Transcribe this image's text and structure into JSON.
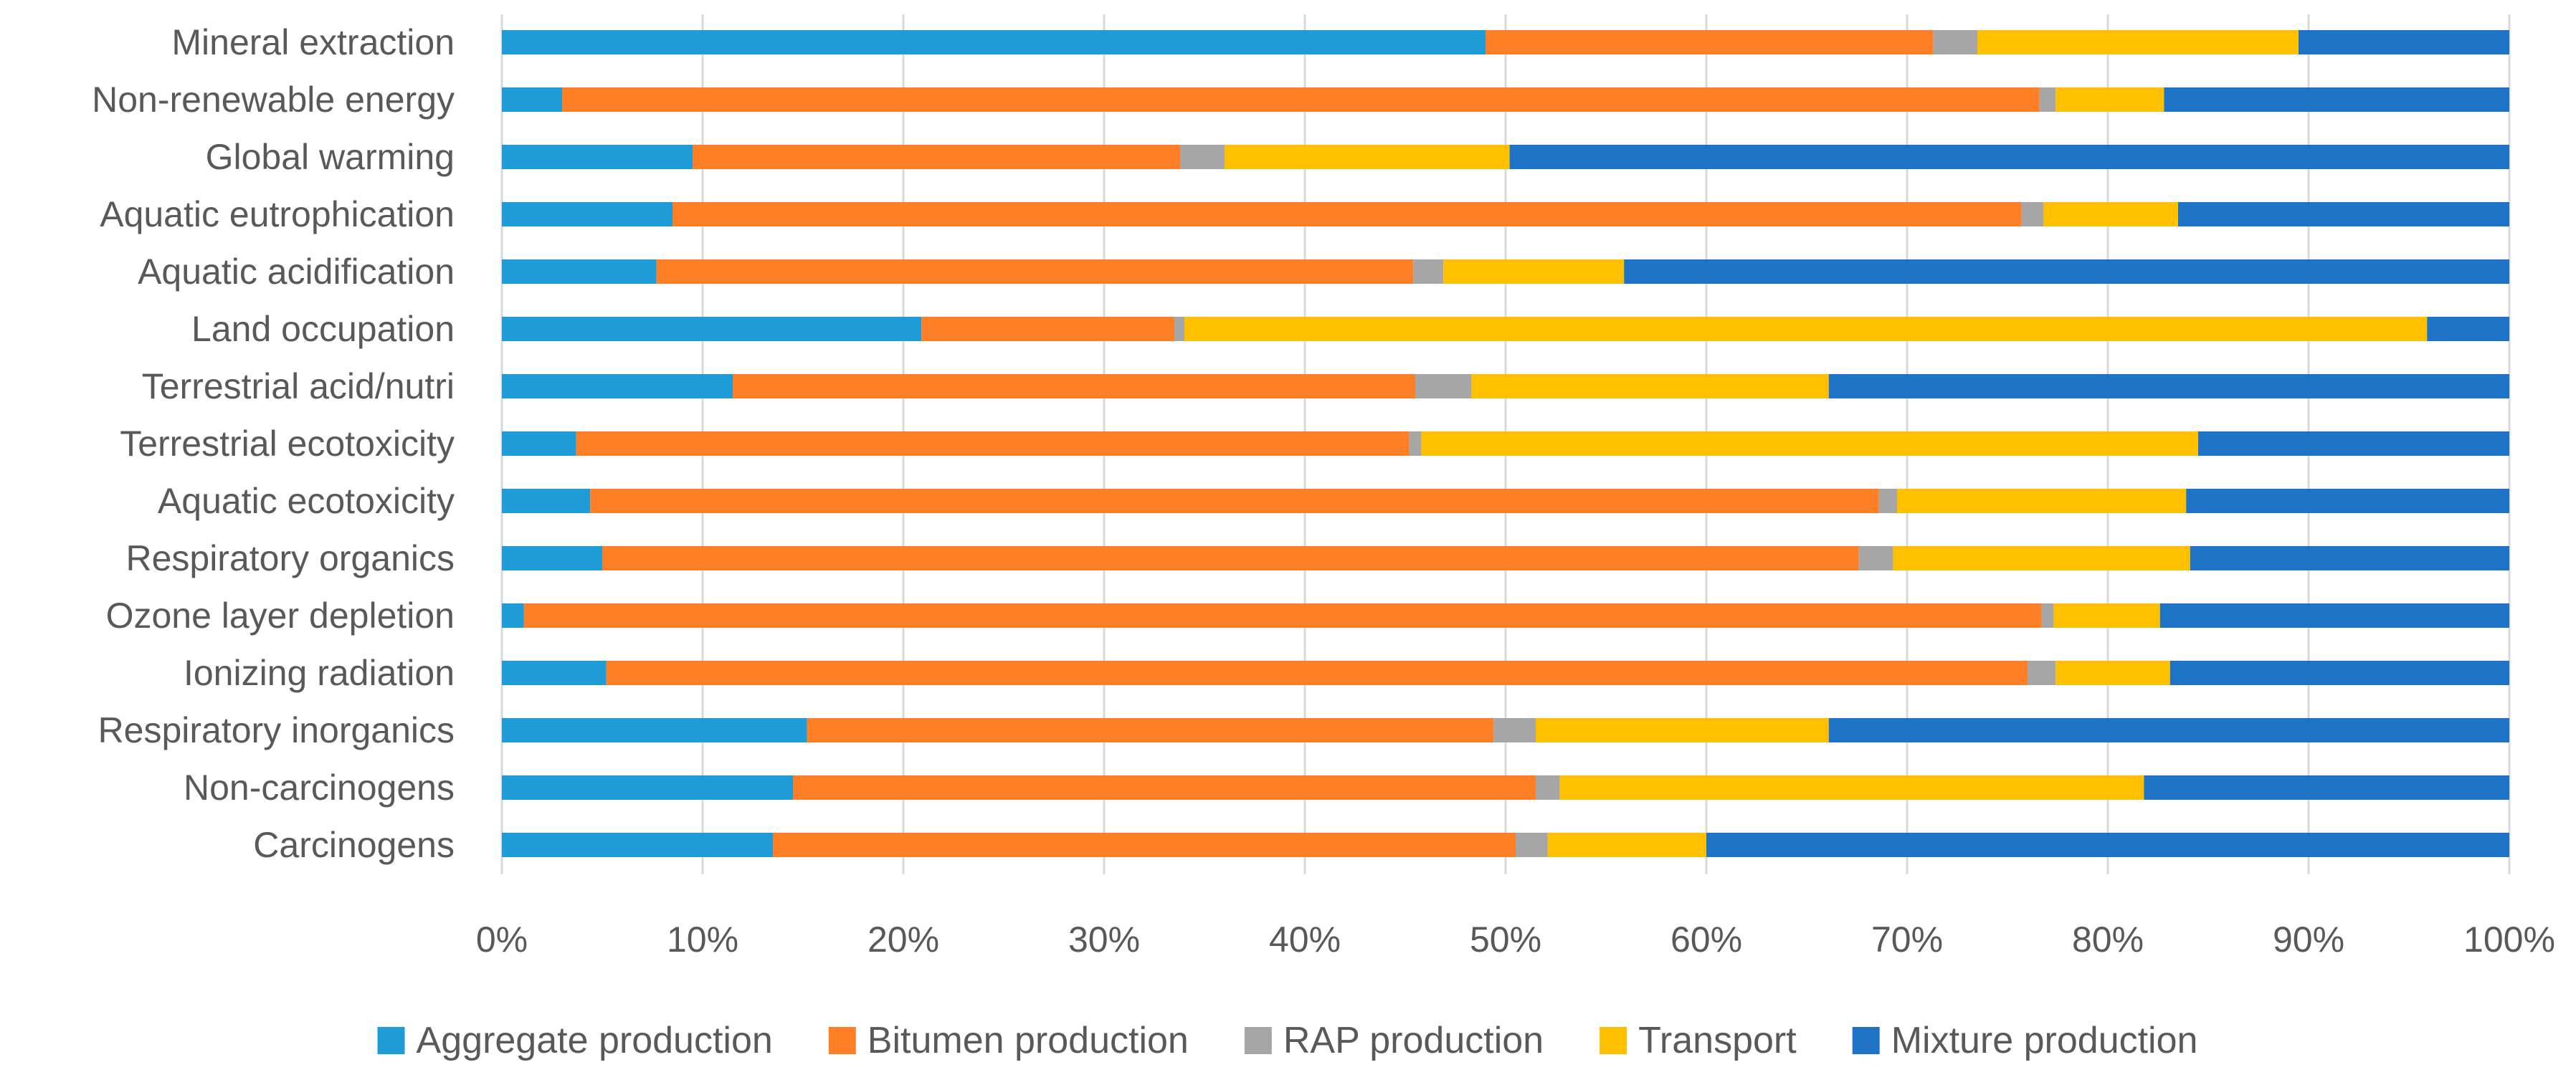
{
  "chart_data": {
    "type": "bar",
    "orientation": "horizontal",
    "stacked": "percent",
    "title": "",
    "xlabel": "",
    "ylabel": "",
    "xlim": [
      0,
      100
    ],
    "x_ticks": [
      0,
      10,
      20,
      30,
      40,
      50,
      60,
      70,
      80,
      90,
      100
    ],
    "x_tick_labels": [
      "0%",
      "10%",
      "20%",
      "30%",
      "40%",
      "50%",
      "60%",
      "70%",
      "80%",
      "90%",
      "100%"
    ],
    "grid": true,
    "legend_position": "bottom",
    "categories": [
      "Mineral extraction",
      "Non-renewable energy",
      "Global warming",
      "Aquatic eutrophication",
      "Aquatic acidification",
      "Land occupation",
      "Terrestrial acid/nutri",
      "Terrestrial ecotoxicity",
      "Aquatic ecotoxicity",
      "Respiratory organics",
      "Ozone layer depletion",
      "Ionizing radiation",
      "Respiratory inorganics",
      "Non-carcinogens",
      "Carcinogens"
    ],
    "series": [
      {
        "name": "Aggregate production",
        "color": "#1f9bd7",
        "values": [
          49.0,
          3.0,
          9.5,
          8.5,
          7.7,
          20.9,
          11.5,
          3.7,
          4.4,
          5.0,
          1.1,
          5.2,
          15.2,
          14.5,
          13.5
        ]
      },
      {
        "name": "Bitumen production",
        "color": "#ff7f27",
        "values": [
          22.3,
          73.6,
          24.3,
          67.2,
          37.7,
          12.6,
          34.0,
          41.5,
          64.2,
          62.6,
          75.6,
          70.8,
          34.2,
          37.0,
          37.0
        ]
      },
      {
        "name": "RAP production",
        "color": "#a6a6a6",
        "values": [
          2.2,
          0.8,
          2.2,
          1.1,
          1.5,
          0.5,
          2.8,
          0.6,
          0.9,
          1.7,
          0.6,
          1.4,
          2.1,
          1.2,
          1.6
        ]
      },
      {
        "name": "Transport",
        "color": "#ffc000",
        "values": [
          16.0,
          5.4,
          14.2,
          6.7,
          9.0,
          61.9,
          17.8,
          38.7,
          14.4,
          14.8,
          5.3,
          5.7,
          14.6,
          29.1,
          7.9
        ]
      },
      {
        "name": "Mixture production",
        "color": "#1f73c6",
        "values": [
          10.5,
          17.2,
          49.8,
          16.5,
          44.1,
          4.1,
          33.9,
          15.5,
          16.1,
          15.9,
          17.4,
          16.9,
          33.9,
          18.2,
          40.0
        ]
      }
    ]
  }
}
